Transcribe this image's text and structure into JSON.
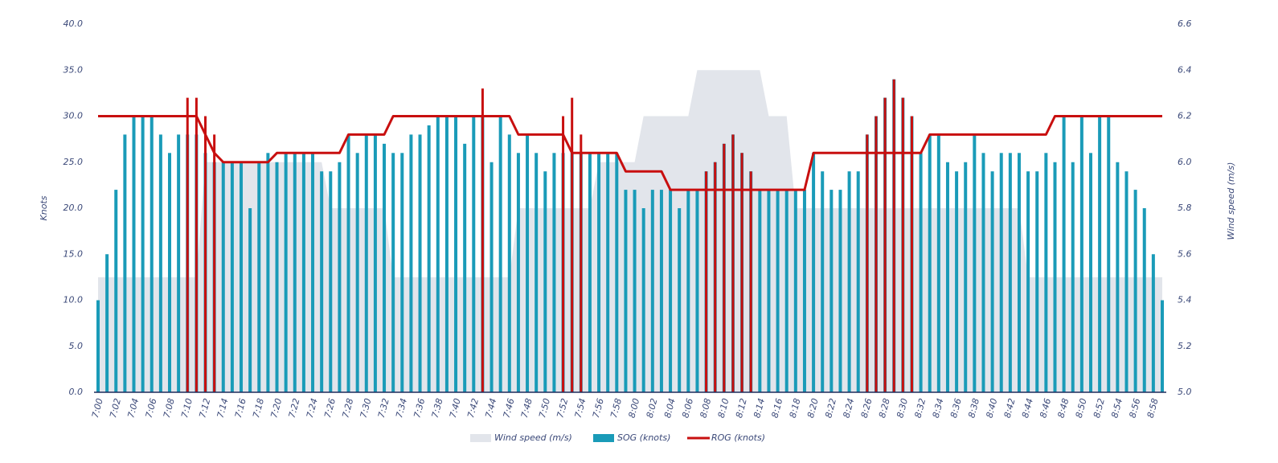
{
  "chart_data": {
    "type": "combo",
    "ylabel": "Knots",
    "y2label": "Wind speed (m/s)",
    "ylim": [
      0,
      40
    ],
    "yticks": [
      {
        "value": 0,
        "label": "0.0"
      },
      {
        "value": 5,
        "label": "5.0"
      },
      {
        "value": 10,
        "label": "10.0"
      },
      {
        "value": 15,
        "label": "15.0"
      },
      {
        "value": 20,
        "label": "20.0"
      },
      {
        "value": 25,
        "label": "25.0"
      },
      {
        "value": 30,
        "label": "30.0"
      },
      {
        "value": 35,
        "label": "35.0"
      },
      {
        "value": 40,
        "label": "40.0"
      }
    ],
    "y2lim": [
      5.0,
      6.6
    ],
    "y2ticks": [
      {
        "value": 5,
        "label": "5.0"
      },
      {
        "value": 5.2,
        "label": "5.2"
      },
      {
        "value": 5.4,
        "label": "5.4"
      },
      {
        "value": 5.6,
        "label": "5.6"
      },
      {
        "value": 5.8,
        "label": "5.8"
      },
      {
        "value": 6,
        "label": "6.0"
      },
      {
        "value": 6.2,
        "label": "6.2"
      },
      {
        "value": 6.4,
        "label": "6.4"
      },
      {
        "value": 6.6,
        "label": "6.6"
      }
    ],
    "categories": [
      "7:00",
      null,
      "7:02",
      null,
      "7:04",
      null,
      "7:06",
      null,
      "7:08",
      null,
      "7:10",
      null,
      "7:12",
      null,
      "7:14",
      null,
      "7:16",
      null,
      "7:18",
      null,
      "7:20",
      null,
      "7:22",
      null,
      "7:24",
      null,
      "7:26",
      null,
      "7:28",
      null,
      "7:30",
      null,
      "7:32",
      null,
      "7:34",
      null,
      "7:36",
      null,
      "7:38",
      null,
      "7:40",
      null,
      "7:42",
      null,
      "7:44",
      null,
      "7:46",
      null,
      "7:48",
      null,
      "7:50",
      null,
      "7:52",
      null,
      "7:54",
      null,
      "7:56",
      null,
      "7:58",
      null,
      "8:00",
      null,
      "8:02",
      null,
      "8:04",
      null,
      "8:06",
      null,
      "8:08",
      null,
      "8:10",
      null,
      "8:12",
      null,
      "8:14",
      null,
      "8:16",
      null,
      "8:18",
      null,
      "8:20",
      null,
      "8:22",
      null,
      "8:24",
      null,
      "8:26",
      null,
      "8:28",
      null,
      "8:30",
      null,
      "8:32",
      null,
      "8:34",
      null,
      "8:36",
      null,
      "8:38",
      null,
      "8:40",
      null,
      "8:42",
      null,
      "8:44",
      null,
      "8:46",
      null,
      "8:48",
      null,
      "8:50",
      null,
      "8:52",
      null,
      "8:54",
      null,
      "8:56",
      null,
      "8:58",
      null
    ],
    "series": [
      {
        "name": "Wind speed (m/s)",
        "type": "area",
        "axis": "y2",
        "color": "#e2e5eb",
        "values": [
          5.5,
          5.5,
          5.5,
          5.5,
          5.5,
          5.5,
          5.5,
          5.5,
          5.5,
          5.5,
          5.5,
          5.5,
          6,
          6,
          6,
          6,
          6,
          6,
          6,
          6,
          6,
          6,
          6,
          6,
          6,
          6,
          5.8,
          5.8,
          5.8,
          5.8,
          5.8,
          5.8,
          5.8,
          5.5,
          5.5,
          5.5,
          5.5,
          5.5,
          5.5,
          5.5,
          5.5,
          5.5,
          5.5,
          5.5,
          5.5,
          5.5,
          5.5,
          5.8,
          5.8,
          5.8,
          5.8,
          5.8,
          5.8,
          5.8,
          5.8,
          5.8,
          6,
          6,
          6,
          6,
          6,
          6.2,
          6.2,
          6.2,
          6.2,
          6.2,
          6.2,
          6.4,
          6.4,
          6.4,
          6.4,
          6.4,
          6.4,
          6.4,
          6.4,
          6.2,
          6.2,
          6.2,
          5.8,
          5.8,
          5.8,
          5.8,
          5.8,
          5.8,
          5.8,
          5.8,
          5.8,
          5.8,
          5.8,
          5.8,
          5.8,
          5.8,
          5.8,
          5.8,
          5.8,
          5.8,
          5.8,
          5.8,
          5.8,
          5.8,
          5.8,
          5.8,
          5.8,
          5.8,
          5.5,
          5.5,
          5.5,
          5.5,
          5.5,
          5.5,
          5.5,
          5.5,
          5.5,
          5.5,
          5.5,
          5.5,
          5.5,
          5.5,
          5.5,
          5.5
        ]
      },
      {
        "name": "SOG (knots)",
        "type": "bar",
        "color": "#1a9bb8",
        "values": [
          10,
          15,
          22,
          28,
          30,
          30,
          30,
          28,
          26,
          28,
          28,
          28,
          26,
          25,
          25,
          25,
          25,
          20,
          25,
          26,
          25,
          26,
          26,
          26,
          26,
          24,
          24,
          25,
          28,
          26,
          28,
          28,
          27,
          26,
          26,
          28,
          28,
          29,
          30,
          30,
          30,
          27,
          30,
          30,
          25,
          30,
          28,
          26,
          28,
          26,
          24,
          26,
          26,
          26,
          26,
          26,
          26,
          26,
          26,
          22,
          22,
          20,
          22,
          22,
          22,
          20,
          22,
          22,
          24,
          25,
          27,
          28,
          26,
          24,
          22,
          22,
          22,
          22,
          22,
          22,
          26,
          24,
          22,
          22,
          24,
          24,
          28,
          30,
          32,
          34,
          32,
          30,
          26,
          28,
          28,
          25,
          24,
          25,
          28,
          26,
          24,
          26,
          26,
          26,
          24,
          24,
          26,
          25,
          30,
          25,
          30,
          26,
          30,
          30,
          25,
          24,
          22,
          20,
          15,
          10
        ]
      },
      {
        "name": "ROG (knots)",
        "type": "line",
        "color": "#c80f0f",
        "values": [
          30,
          30,
          30,
          30,
          30,
          30,
          30,
          30,
          30,
          30,
          30,
          30,
          28,
          26,
          25,
          25,
          25,
          25,
          25,
          25,
          26,
          26,
          26,
          26,
          26,
          26,
          26,
          26,
          28,
          28,
          28,
          28,
          28,
          30,
          30,
          30,
          30,
          30,
          30,
          30,
          30,
          30,
          30,
          30,
          30,
          30,
          30,
          28,
          28,
          28,
          28,
          28,
          28,
          26,
          26,
          26,
          26,
          26,
          26,
          24,
          24,
          24,
          24,
          24,
          22,
          22,
          22,
          22,
          22,
          22,
          22,
          22,
          22,
          22,
          22,
          22,
          22,
          22,
          22,
          22,
          26,
          26,
          26,
          26,
          26,
          26,
          26,
          26,
          26,
          26,
          26,
          26,
          26,
          28,
          28,
          28,
          28,
          28,
          28,
          28,
          28,
          28,
          28,
          28,
          28,
          28,
          28,
          30,
          30,
          30,
          30,
          30,
          30,
          30,
          30,
          30,
          30,
          30,
          30,
          30
        ],
        "spikes": [
          null,
          null,
          null,
          null,
          null,
          null,
          null,
          null,
          null,
          null,
          32,
          32,
          30,
          28,
          null,
          null,
          null,
          null,
          null,
          null,
          null,
          null,
          null,
          null,
          null,
          null,
          null,
          null,
          null,
          null,
          null,
          null,
          null,
          null,
          null,
          null,
          null,
          null,
          null,
          null,
          null,
          null,
          null,
          33,
          null,
          null,
          null,
          null,
          null,
          null,
          null,
          null,
          30,
          32,
          28,
          null,
          null,
          null,
          null,
          null,
          null,
          null,
          null,
          null,
          null,
          null,
          null,
          null,
          24,
          25,
          27,
          28,
          26,
          24,
          null,
          null,
          null,
          null,
          null,
          null,
          null,
          null,
          null,
          null,
          null,
          null,
          28,
          30,
          32,
          34,
          32,
          30,
          null,
          null,
          null,
          null,
          null,
          null,
          null,
          null,
          null,
          null,
          null,
          null,
          null,
          null,
          null,
          null,
          null,
          null,
          null,
          null,
          null,
          null,
          null,
          null,
          null,
          null,
          null,
          null
        ]
      }
    ]
  }
}
